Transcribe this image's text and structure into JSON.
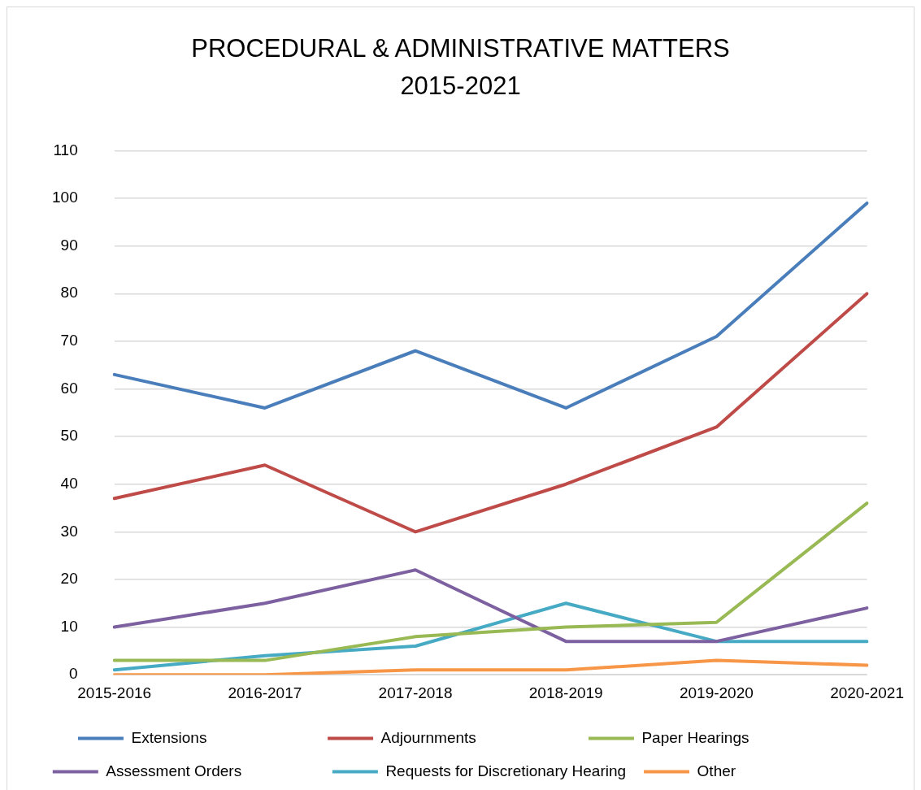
{
  "chart_data": {
    "type": "line",
    "title": "PROCEDURAL & ADMINISTRATIVE MATTERS 2015-2021",
    "categories": [
      "2015-2016",
      "2016-2017",
      "2017-2018",
      "2018-2019",
      "2019-2020",
      "2020-2021"
    ],
    "series": [
      {
        "name": "Extensions",
        "color": "#4a7ebb",
        "values": [
          63,
          56,
          68,
          56,
          71,
          99
        ]
      },
      {
        "name": "Adjournments",
        "color": "#be4b48",
        "values": [
          37,
          44,
          30,
          40,
          52,
          80
        ]
      },
      {
        "name": "Paper Hearings",
        "color": "#98b954",
        "values": [
          3,
          3,
          8,
          10,
          11,
          36
        ]
      },
      {
        "name": "Assessment Orders",
        "color": "#7d60a0",
        "values": [
          10,
          15,
          22,
          7,
          7,
          14
        ]
      },
      {
        "name": "Requests for Discretionary Hearing",
        "color": "#46aac5",
        "values": [
          1,
          4,
          6,
          15,
          7,
          7
        ]
      },
      {
        "name": "Other",
        "color": "#f79646",
        "values": [
          0,
          0,
          1,
          1,
          3,
          2
        ]
      }
    ],
    "ylim": [
      0,
      110
    ],
    "yticks": [
      0,
      10,
      20,
      30,
      40,
      50,
      60,
      70,
      80,
      90,
      100,
      110
    ],
    "grid": "y",
    "legend": "bottom",
    "marker": "none",
    "line_style": "solid"
  }
}
